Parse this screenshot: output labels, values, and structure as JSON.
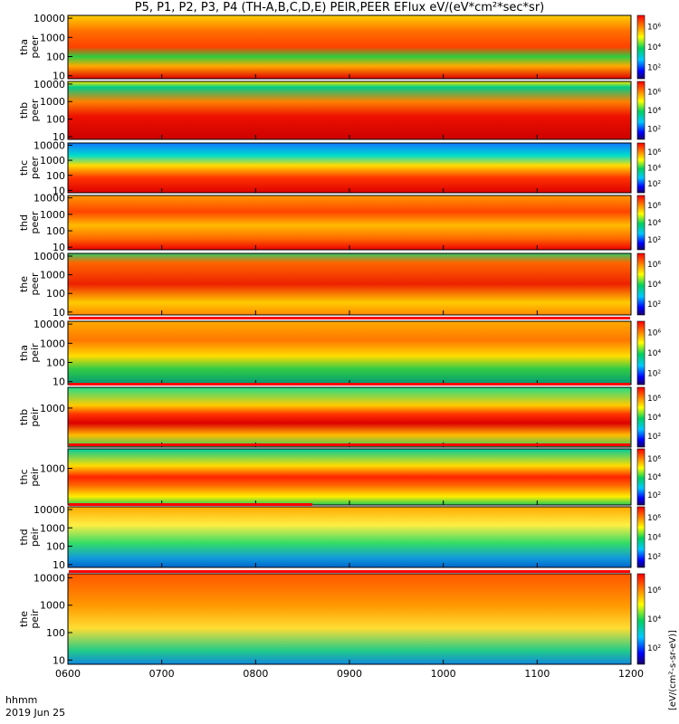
{
  "title": "P5, P1, P2, P3, P4 (TH-A,B,C,D,E) PEIR,PEER EFlux eV/(eV*cm²*sec*sr)",
  "footer": {
    "time_label": "hhmm",
    "date_label": "2019 Jun 25"
  },
  "colorbar_units": "[eV/(cm²-s-sr-eV)]",
  "colors": {
    "black": "#000000",
    "red_line": "#ff0000"
  },
  "chart_data": [
    {
      "type": "heatmap",
      "probe": "tha",
      "quantity": "peer",
      "ylabel": [
        "tha",
        "peer"
      ],
      "yscale": "log",
      "yticks": [
        "10000",
        "1000",
        "100",
        "10"
      ],
      "yticks_values": [
        10000,
        1000,
        100,
        10
      ],
      "xlim": [
        "0600",
        "1200"
      ],
      "colorbar_ticks": [
        "10⁶",
        "10⁴",
        "10²"
      ]
    },
    {
      "type": "heatmap",
      "probe": "thb",
      "quantity": "peer",
      "ylabel": [
        "thb",
        "peer"
      ],
      "yscale": "log",
      "yticks": [
        "10000",
        "1000",
        "100",
        "10"
      ],
      "yticks_values": [
        10000,
        1000,
        100,
        10
      ],
      "xlim": [
        "0600",
        "1200"
      ],
      "colorbar_ticks": [
        "10⁶",
        "10⁴",
        "10²"
      ]
    },
    {
      "type": "heatmap",
      "probe": "thc",
      "quantity": "peer",
      "ylabel": [
        "thc",
        "peer"
      ],
      "yscale": "log",
      "yticks": [
        "10000",
        "1000",
        "100",
        "10"
      ],
      "yticks_values": [
        10000,
        1000,
        100,
        10
      ],
      "xlim": [
        "0600",
        "1200"
      ],
      "colorbar_ticks": [
        "10⁶",
        "10⁴",
        "10²"
      ]
    },
    {
      "type": "heatmap",
      "probe": "thd",
      "quantity": "peer",
      "ylabel": [
        "thd",
        "peer"
      ],
      "yscale": "log",
      "yticks": [
        "10000",
        "1000",
        "100",
        "10"
      ],
      "yticks_values": [
        10000,
        1000,
        100,
        10
      ],
      "xlim": [
        "0600",
        "1200"
      ],
      "colorbar_ticks": [
        "10⁶",
        "10⁴",
        "10²"
      ]
    },
    {
      "type": "heatmap",
      "probe": "the",
      "quantity": "peer",
      "ylabel": [
        "the",
        "peer"
      ],
      "yscale": "log",
      "yticks": [
        "10000",
        "1000",
        "100",
        "10"
      ],
      "yticks_values": [
        10000,
        1000,
        100,
        10
      ],
      "xlim": [
        "0600",
        "1200"
      ],
      "colorbar_ticks": [
        "10⁶",
        "10⁴",
        "10²"
      ]
    },
    {
      "type": "heatmap",
      "probe": "tha",
      "quantity": "peir",
      "ylabel": [
        "tha",
        "peir"
      ],
      "yscale": "log",
      "yticks": [
        "10000",
        "1000",
        "100",
        "10"
      ],
      "yticks_values": [
        10000,
        1000,
        100,
        10
      ],
      "xlim": [
        "0600",
        "1200"
      ],
      "colorbar_ticks": [
        "10⁶",
        "10⁴",
        "10²"
      ]
    },
    {
      "type": "heatmap",
      "probe": "thb",
      "quantity": "peir",
      "ylabel": [
        "thb",
        "peir"
      ],
      "yscale": "log",
      "yticks": [
        "1000"
      ],
      "yticks_values": [
        1000
      ],
      "xlim": [
        "0600",
        "1200"
      ],
      "colorbar_ticks": [
        "10⁶",
        "10⁴",
        "10²"
      ]
    },
    {
      "type": "heatmap",
      "probe": "thc",
      "quantity": "peir",
      "ylabel": [
        "thc",
        "peir"
      ],
      "yscale": "log",
      "yticks": [
        "1000"
      ],
      "yticks_values": [
        1000
      ],
      "xlim": [
        "0600",
        "1200"
      ],
      "colorbar_ticks": [
        "10⁶",
        "10⁴",
        "10²"
      ]
    },
    {
      "type": "heatmap",
      "probe": "thd",
      "quantity": "peir",
      "ylabel": [
        "thd",
        "peir"
      ],
      "yscale": "log",
      "yticks": [
        "10000",
        "1000",
        "100",
        "10"
      ],
      "yticks_values": [
        10000,
        1000,
        100,
        10
      ],
      "xlim": [
        "0600",
        "1200"
      ],
      "colorbar_ticks": [
        "10⁶",
        "10⁴",
        "10²"
      ]
    },
    {
      "type": "heatmap",
      "probe": "the",
      "quantity": "peir",
      "ylabel": [
        "the",
        "peir"
      ],
      "yscale": "log",
      "yticks": [
        "10000",
        "1000",
        "100",
        "10"
      ],
      "yticks_values": [
        10000,
        1000,
        100,
        10
      ],
      "xlim": [
        "0600",
        "1200"
      ],
      "colorbar_ticks": [
        "10⁶",
        "10⁴",
        "10²"
      ]
    }
  ],
  "x_axis": {
    "ticks": [
      "0600",
      "0700",
      "0800",
      "0900",
      "1000",
      "1100",
      "1200"
    ]
  }
}
